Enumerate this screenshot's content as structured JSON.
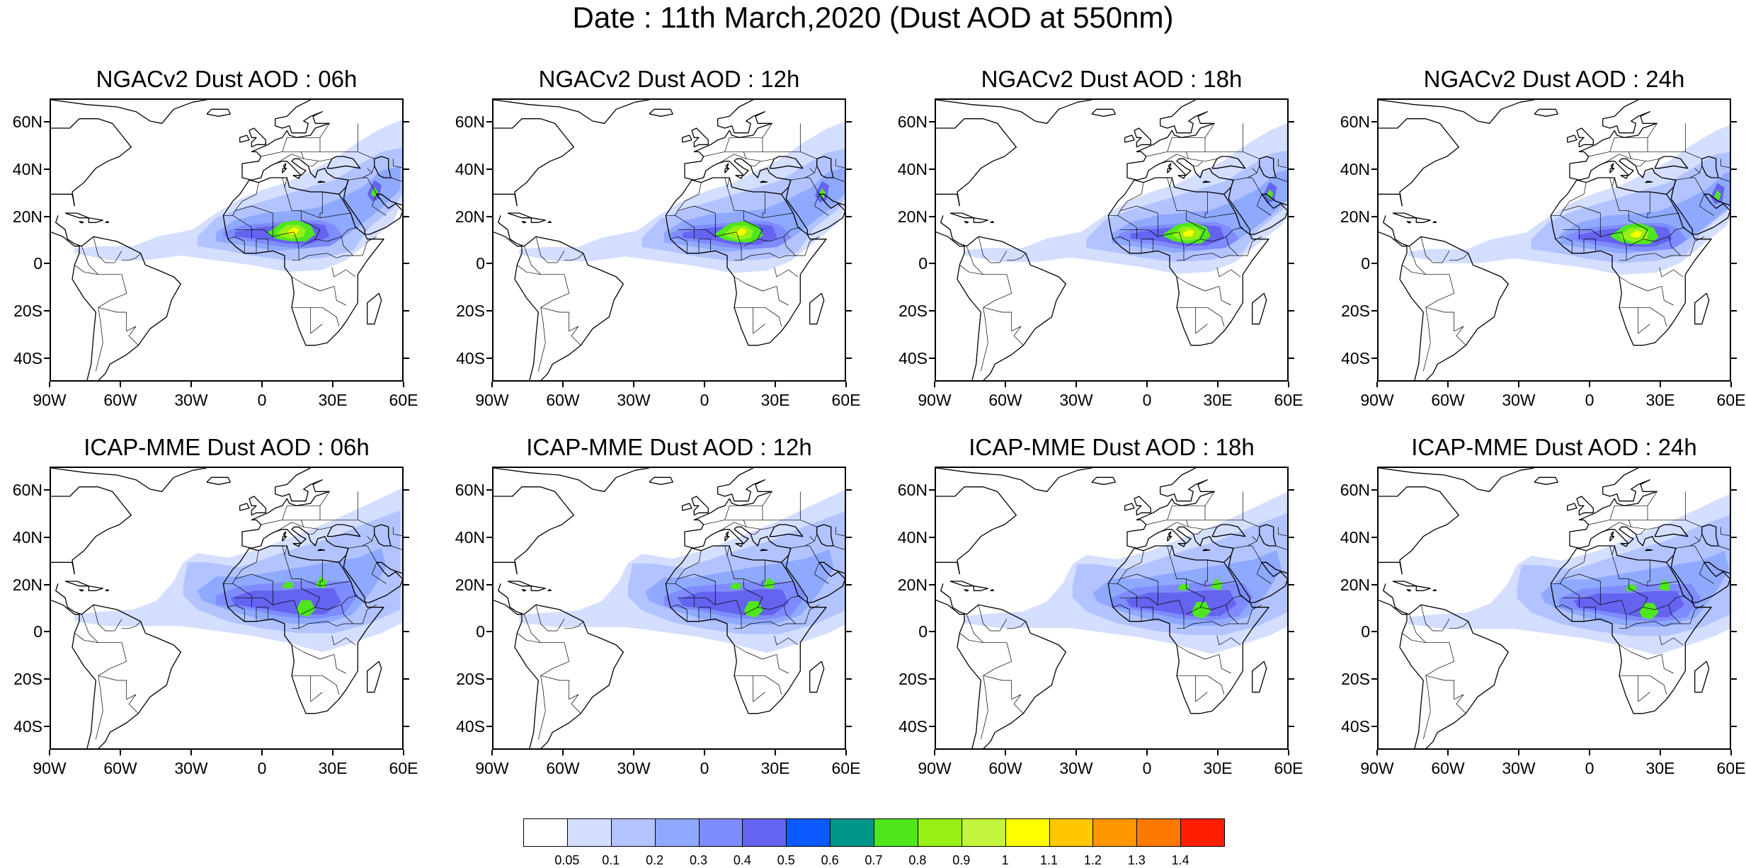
{
  "title": "Date : 11th March,2020 (Dust AOD at 550nm)",
  "lat_labels": [
    "60N",
    "40N",
    "20N",
    "0",
    "20S",
    "40S"
  ],
  "lat_values": [
    60,
    40,
    20,
    0,
    -20,
    -40
  ],
  "lon_labels": [
    "90W",
    "60W",
    "30W",
    "0",
    "30E",
    "60E"
  ],
  "lon_values": [
    -90,
    -60,
    -30,
    0,
    30,
    60
  ],
  "map_extent": {
    "lon": [
      -90,
      60
    ],
    "lat": [
      -50,
      70
    ]
  },
  "panels": [
    {
      "title": "NGACv2 Dust AOD : 06h",
      "model": "NGAC",
      "hour": 6
    },
    {
      "title": "NGACv2 Dust AOD : 12h",
      "model": "NGAC",
      "hour": 12
    },
    {
      "title": "NGACv2 Dust AOD : 18h",
      "model": "NGAC",
      "hour": 18
    },
    {
      "title": "NGACv2 Dust AOD : 24h",
      "model": "NGAC",
      "hour": 24
    },
    {
      "title": "ICAP-MME Dust AOD : 06h",
      "model": "ICAP",
      "hour": 6
    },
    {
      "title": "ICAP-MME Dust AOD : 12h",
      "model": "ICAP",
      "hour": 12
    },
    {
      "title": "ICAP-MME Dust AOD : 18h",
      "model": "ICAP",
      "hour": 18
    },
    {
      "title": "ICAP-MME Dust AOD : 24h",
      "model": "ICAP",
      "hour": 24
    }
  ],
  "colorbar": {
    "colors": [
      "#ffffff",
      "#d4deff",
      "#b3c3ff",
      "#8fa9ff",
      "#7f8cff",
      "#6464f0",
      "#0a5aff",
      "#00968c",
      "#50e61e",
      "#96f014",
      "#c3f53c",
      "#ffff00",
      "#ffc800",
      "#ff9600",
      "#ff7800",
      "#ff1e00"
    ],
    "labels": [
      "0.05",
      "0.1",
      "0.2",
      "0.3",
      "0.4",
      "0.5",
      "0.6",
      "0.7",
      "0.8",
      "0.9",
      "1",
      "1.1",
      "1.2",
      "1.3",
      "1.4"
    ]
  }
}
